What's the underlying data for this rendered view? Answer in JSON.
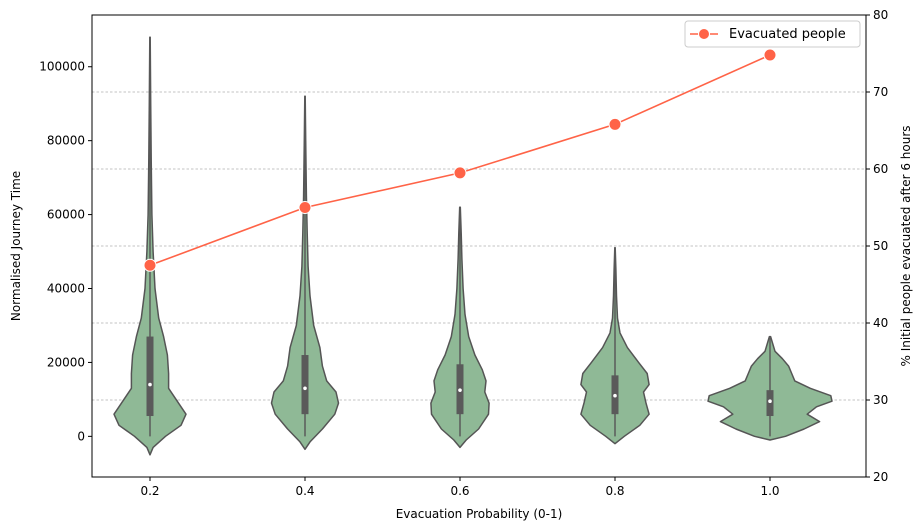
{
  "chart_data": {
    "type": "violin+line",
    "xlabel": "Evacuation Probability (0-1)",
    "ylabel_left": "Normalised Journey Time",
    "ylabel_right": "% Initial people evacuated after 6 hours",
    "categories": [
      "0.2",
      "0.4",
      "0.6",
      "0.8",
      "1.0"
    ],
    "ylim_left": [
      -11000,
      114000
    ],
    "yticks_left": [
      "0",
      "20000",
      "40000",
      "60000",
      "80000",
      "100000"
    ],
    "ylim_right": [
      20,
      80
    ],
    "yticks_right": [
      "20",
      "30",
      "40",
      "50",
      "60",
      "70",
      "80"
    ],
    "grid": "horizontal dashed on right-axis ticks",
    "legend": {
      "placement": "top-right",
      "entries": [
        "Evacuated people"
      ]
    },
    "colors": {
      "violin_fill": "#8fb996",
      "violin_edge": "#555555",
      "line": "#ff6347",
      "grid": "#b0b0b0"
    },
    "violins": [
      {
        "category": "0.2",
        "min": 0,
        "q1": 5500,
        "median": 14000,
        "q3": 27000,
        "max": 108000,
        "profile": [
          [
            -5000,
            0
          ],
          [
            -3000,
            0.05
          ],
          [
            0,
            0.25
          ],
          [
            3000,
            0.5
          ],
          [
            6000,
            0.58
          ],
          [
            9000,
            0.46
          ],
          [
            13000,
            0.3
          ],
          [
            17000,
            0.3
          ],
          [
            22000,
            0.28
          ],
          [
            27000,
            0.22
          ],
          [
            32000,
            0.14
          ],
          [
            40000,
            0.08
          ],
          [
            50000,
            0.05
          ],
          [
            60000,
            0.03
          ],
          [
            75000,
            0.02
          ],
          [
            90000,
            0.012
          ],
          [
            108000,
            0.004
          ]
        ]
      },
      {
        "category": "0.4",
        "min": 0,
        "q1": 6000,
        "median": 13000,
        "q3": 22000,
        "max": 92000,
        "profile": [
          [
            -3500,
            0
          ],
          [
            -1500,
            0.08
          ],
          [
            2000,
            0.28
          ],
          [
            6000,
            0.48
          ],
          [
            9000,
            0.54
          ],
          [
            12000,
            0.5
          ],
          [
            15000,
            0.35
          ],
          [
            19000,
            0.28
          ],
          [
            24000,
            0.24
          ],
          [
            30000,
            0.14
          ],
          [
            38000,
            0.08
          ],
          [
            46000,
            0.05
          ],
          [
            55000,
            0.035
          ],
          [
            65000,
            0.022
          ],
          [
            80000,
            0.012
          ],
          [
            92000,
            0.004
          ]
        ]
      },
      {
        "category": "0.6",
        "min": 0,
        "q1": 6000,
        "median": 12500,
        "q3": 19500,
        "max": 62000,
        "profile": [
          [
            -3000,
            0
          ],
          [
            -1000,
            0.1
          ],
          [
            2000,
            0.3
          ],
          [
            6000,
            0.46
          ],
          [
            9000,
            0.47
          ],
          [
            12000,
            0.4
          ],
          [
            15000,
            0.42
          ],
          [
            18000,
            0.36
          ],
          [
            22000,
            0.24
          ],
          [
            27000,
            0.14
          ],
          [
            33000,
            0.08
          ],
          [
            40000,
            0.05
          ],
          [
            48000,
            0.03
          ],
          [
            55000,
            0.02
          ],
          [
            62000,
            0.005
          ]
        ]
      },
      {
        "category": "0.8",
        "min": 0,
        "q1": 6000,
        "median": 11000,
        "q3": 16500,
        "max": 51000,
        "profile": [
          [
            -2000,
            0
          ],
          [
            0,
            0.15
          ],
          [
            3000,
            0.4
          ],
          [
            6000,
            0.55
          ],
          [
            9000,
            0.5
          ],
          [
            12000,
            0.46
          ],
          [
            14000,
            0.55
          ],
          [
            17000,
            0.52
          ],
          [
            20000,
            0.38
          ],
          [
            24000,
            0.2
          ],
          [
            28000,
            0.08
          ],
          [
            32000,
            0.04
          ],
          [
            38000,
            0.025
          ],
          [
            45000,
            0.015
          ],
          [
            51000,
            0.004
          ]
        ]
      },
      {
        "category": "1.0",
        "min": 0,
        "q1": 5500,
        "median": 9500,
        "q3": 12500,
        "max": 27000,
        "profile": [
          [
            -1000,
            0
          ],
          [
            0,
            0.25
          ],
          [
            2000,
            0.55
          ],
          [
            4000,
            0.8
          ],
          [
            6000,
            0.6
          ],
          [
            8000,
            0.75
          ],
          [
            9500,
            1.0
          ],
          [
            11000,
            0.98
          ],
          [
            13000,
            0.65
          ],
          [
            15000,
            0.4
          ],
          [
            17000,
            0.35
          ],
          [
            19000,
            0.3
          ],
          [
            21000,
            0.2
          ],
          [
            23000,
            0.08
          ],
          [
            27000,
            0.01
          ]
        ]
      }
    ],
    "series": [
      {
        "name": "Evacuated people",
        "axis": "right",
        "values": [
          47.5,
          55.0,
          59.5,
          65.8,
          74.8
        ]
      }
    ]
  }
}
